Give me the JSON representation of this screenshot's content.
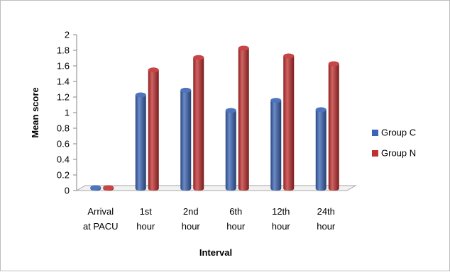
{
  "chart_data": {
    "type": "bar",
    "title": "",
    "xlabel": "Interval",
    "ylabel": "Mean score",
    "ylim": [
      0,
      2
    ],
    "y_ticks": [
      "0",
      "0.2",
      "0.4",
      "0.6",
      "0.8",
      "1",
      "1.2",
      "1.4",
      "1.6",
      "1.8",
      "2"
    ],
    "categories": [
      [
        "Arrival",
        "at PACU"
      ],
      [
        "1st",
        "hour"
      ],
      [
        "2nd",
        "hour"
      ],
      [
        "6th",
        "hour"
      ],
      [
        "12th",
        "hour"
      ],
      [
        "24th",
        "hour"
      ]
    ],
    "series": [
      {
        "name": "Group C",
        "color": "#3a64b4",
        "values": [
          0.01,
          1.2,
          1.26,
          1.0,
          1.13,
          1.01
        ]
      },
      {
        "name": "Group N",
        "color": "#c32f2f",
        "values": [
          0.01,
          1.52,
          1.68,
          1.8,
          1.7,
          1.6
        ]
      }
    ],
    "legend_position": "right",
    "grid": false,
    "style": "3d-cylinder"
  }
}
